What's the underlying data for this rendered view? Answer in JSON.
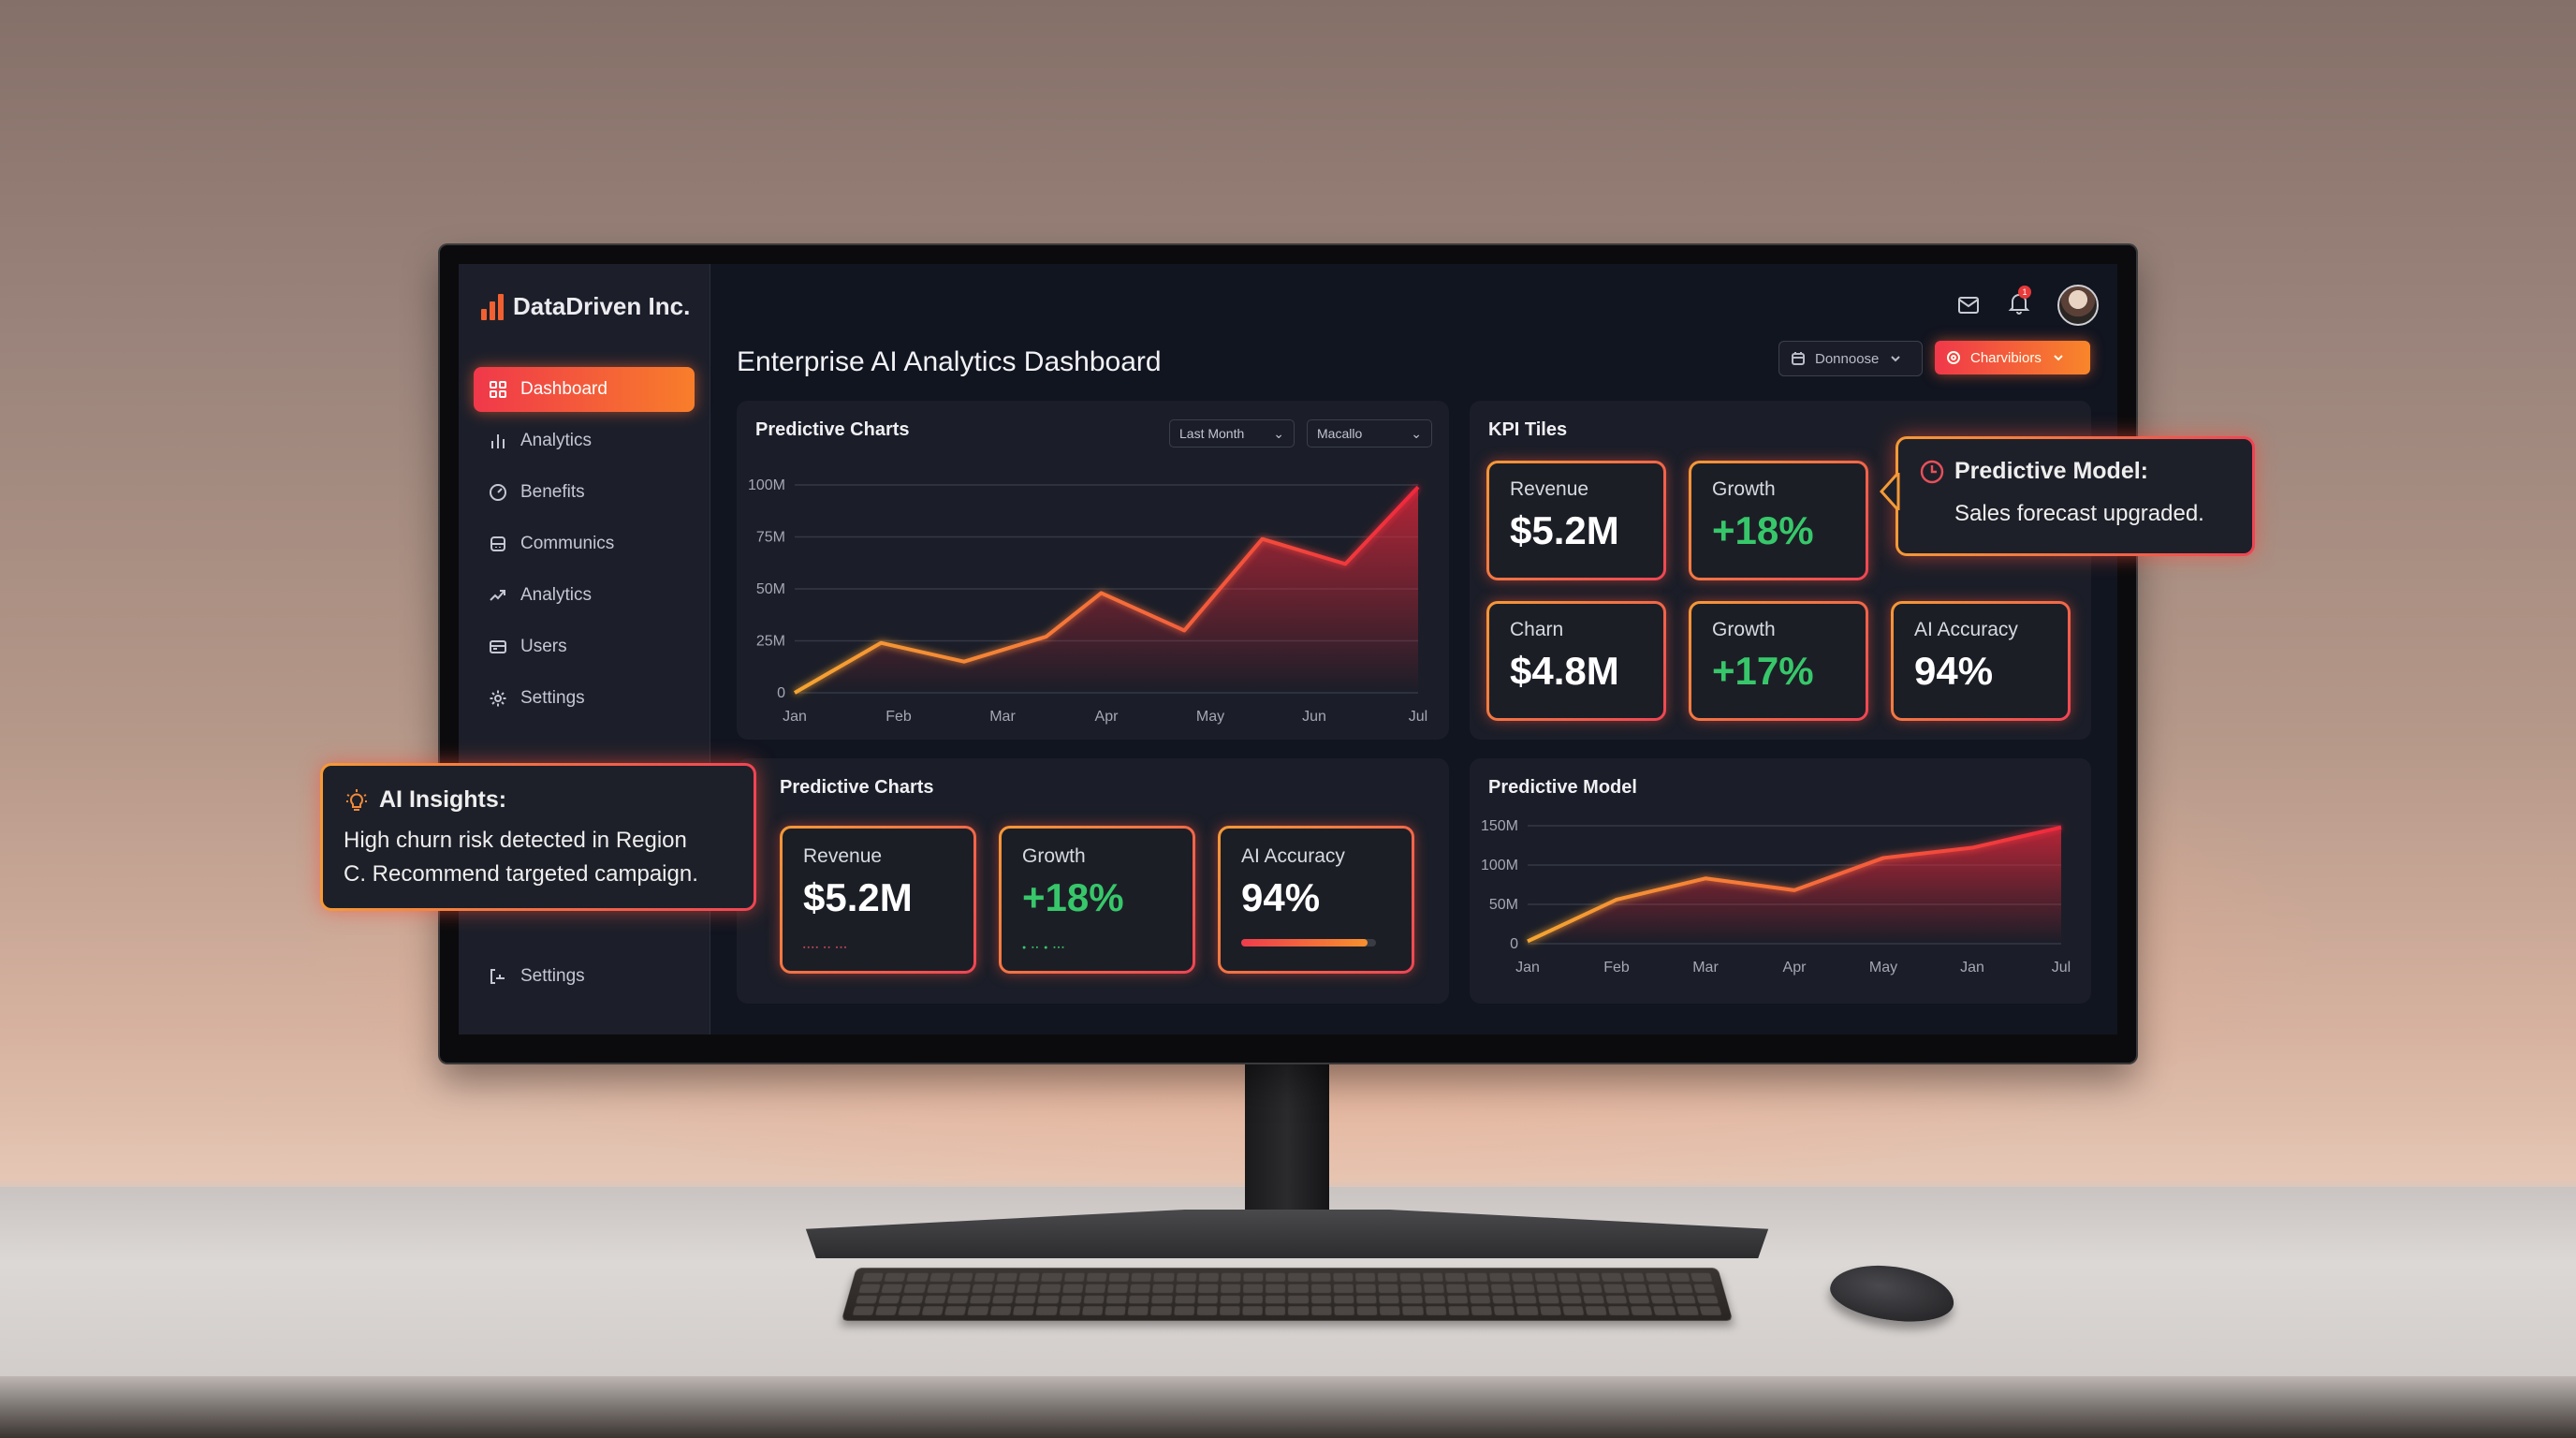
{
  "scene": {
    "colors": {
      "accent_red": "#f0384a",
      "accent_orange": "#f8862a",
      "positive_green": "#37c76a",
      "screen_bg": "#111520",
      "card_bg": "#1b1e28"
    }
  },
  "sidebar": {
    "brand": {
      "name": "DataDriven Inc.",
      "icon": "bar-chart-logo-icon"
    },
    "items": [
      {
        "label": "Dashboard",
        "icon": "grid-icon",
        "active": true
      },
      {
        "label": "Analytics",
        "icon": "bar-chart-icon",
        "active": false
      },
      {
        "label": "Benefits",
        "icon": "gauge-icon",
        "active": false
      },
      {
        "label": "Communics",
        "icon": "inbox-icon",
        "active": false
      },
      {
        "label": "Analytics",
        "icon": "trend-up-icon",
        "active": false
      },
      {
        "label": "Users",
        "icon": "id-card-icon",
        "active": false
      },
      {
        "label": "Settings",
        "icon": "gear-icon",
        "active": false
      }
    ],
    "footer": {
      "label": "Settings",
      "icon": "logout-icon"
    }
  },
  "header": {
    "title": "Enterprise AI Analytics Dashboard",
    "icons": [
      "mail-icon",
      "bell-icon",
      "avatar"
    ],
    "notification_count": "1",
    "date_dropdown": {
      "label": "Donnoose",
      "icon": "calendar-icon"
    },
    "action_dropdown": {
      "label": "Charvibiors",
      "icon": "target-icon"
    }
  },
  "top_chart_card": {
    "title": "Predictive Charts",
    "filters": [
      {
        "label": "Last Month"
      },
      {
        "label": "Macallo"
      }
    ]
  },
  "kpi_card": {
    "title": "KPI Tiles",
    "tiles": [
      {
        "label": "Revenue",
        "value": "$5.2M",
        "positive": false
      },
      {
        "label": "Growth",
        "value": "+18%",
        "positive": true
      },
      {
        "label": "Charn",
        "value": "$4.8M",
        "positive": false
      },
      {
        "label": "Growth",
        "value": "+17%",
        "positive": true
      },
      {
        "label": "AI Accuracy",
        "value": "94%",
        "positive": false
      }
    ]
  },
  "bottom_tiles_card": {
    "title": "Predictive Charts",
    "tiles": [
      {
        "label": "Revenue",
        "value": "$5.2M",
        "positive": false
      },
      {
        "label": "Growth",
        "value": "+18%",
        "positive": true
      },
      {
        "label": "AI Accuracy",
        "value": "94%",
        "positive": false,
        "progress": 94
      }
    ]
  },
  "bottom_chart_card": {
    "title": "Predictive Model"
  },
  "callouts": {
    "ai_insights": {
      "icon": "lightbulb-icon",
      "title": "AI Insights:",
      "line1": "High churn risk detected in Region",
      "line2": "C. Recommend targeted campaign."
    },
    "predictive_model": {
      "icon": "clock-icon",
      "title": "Predictive Model:",
      "body": "Sales forecast upgraded."
    }
  },
  "chart_data": [
    {
      "type": "line",
      "title": "Predictive Charts",
      "x": [
        "Jan",
        "",
        "Feb",
        "",
        "Mar",
        "",
        "Apr",
        "",
        "May",
        "",
        "Jun",
        "Jul"
      ],
      "categories": [
        "Jan",
        "Feb",
        "Mar",
        "Apr",
        "May",
        "Jun",
        "Jul"
      ],
      "points": [
        {
          "x": 0.0,
          "y": 0
        },
        {
          "x": 0.83,
          "y": 24
        },
        {
          "x": 1.63,
          "y": 15
        },
        {
          "x": 2.42,
          "y": 27
        },
        {
          "x": 2.95,
          "y": 48
        },
        {
          "x": 3.75,
          "y": 30
        },
        {
          "x": 4.5,
          "y": 74
        },
        {
          "x": 5.3,
          "y": 62
        },
        {
          "x": 6.0,
          "y": 99
        }
      ],
      "yticks": [
        "0",
        "25M",
        "50M",
        "75M",
        "100M"
      ],
      "ylim": [
        0,
        100
      ],
      "ylabel": "",
      "xlabel": "",
      "grid": true,
      "area_fill": true
    },
    {
      "type": "line",
      "title": "Predictive Model",
      "categories": [
        "Jan",
        "Feb",
        "Mar",
        "Apr",
        "May",
        "Jan",
        "Jul"
      ],
      "values": [
        3,
        56,
        83,
        68,
        109,
        122,
        148
      ],
      "yticks": [
        "0",
        "50M",
        "100M",
        "150M"
      ],
      "ylim": [
        0,
        150
      ],
      "ylabel": "",
      "xlabel": "",
      "grid": true,
      "area_fill": true
    }
  ]
}
